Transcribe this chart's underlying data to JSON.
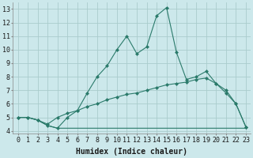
{
  "bg_color": "#cce8eb",
  "grid_color": "#aacccc",
  "line_color": "#2a7a6a",
  "xlabel": "Humidex (Indice chaleur)",
  "xlabel_fontsize": 7,
  "tick_fontsize": 6,
  "xlim": [
    -0.5,
    23.5
  ],
  "ylim": [
    3.8,
    13.5
  ],
  "yticks": [
    4,
    5,
    6,
    7,
    8,
    9,
    10,
    11,
    12,
    13
  ],
  "xticks": [
    0,
    1,
    2,
    3,
    4,
    5,
    6,
    7,
    8,
    9,
    10,
    11,
    12,
    13,
    14,
    15,
    16,
    17,
    18,
    19,
    20,
    21,
    22,
    23
  ],
  "curve1_x": [
    0,
    1,
    2,
    3,
    4,
    5,
    6,
    7,
    8,
    9,
    10,
    11,
    12,
    13,
    14,
    15,
    16,
    17,
    18,
    19,
    20,
    21,
    22,
    23
  ],
  "curve1_y": [
    5.0,
    5.0,
    4.8,
    4.4,
    4.2,
    5.0,
    5.5,
    6.8,
    8.0,
    8.8,
    10.0,
    11.0,
    9.7,
    10.2,
    12.5,
    13.1,
    9.8,
    7.8,
    8.0,
    8.4,
    7.5,
    7.0,
    6.0,
    4.3
  ],
  "curve2_x": [
    0,
    1,
    2,
    3,
    4,
    5,
    6,
    7,
    8,
    9,
    10,
    11,
    12,
    13,
    14,
    15,
    16,
    17,
    18,
    19,
    20,
    21,
    22,
    23
  ],
  "curve2_y": [
    5.0,
    5.0,
    4.8,
    4.5,
    5.0,
    5.3,
    5.5,
    5.8,
    6.0,
    6.3,
    6.5,
    6.7,
    6.8,
    7.0,
    7.2,
    7.4,
    7.5,
    7.6,
    7.8,
    7.9,
    7.5,
    6.8,
    6.0,
    4.3
  ],
  "curve3_x": [
    0,
    1,
    2,
    3,
    4,
    5,
    6,
    7,
    8,
    9,
    10,
    11,
    12,
    13,
    14,
    15,
    16,
    17,
    18,
    19,
    20,
    21,
    22,
    23
  ],
  "curve3_y": [
    5.0,
    5.0,
    4.8,
    4.4,
    4.2,
    4.2,
    4.2,
    4.2,
    4.2,
    4.2,
    4.2,
    4.2,
    4.2,
    4.2,
    4.2,
    4.2,
    4.2,
    4.2,
    4.2,
    4.2,
    4.2,
    4.2,
    4.2,
    4.2
  ]
}
